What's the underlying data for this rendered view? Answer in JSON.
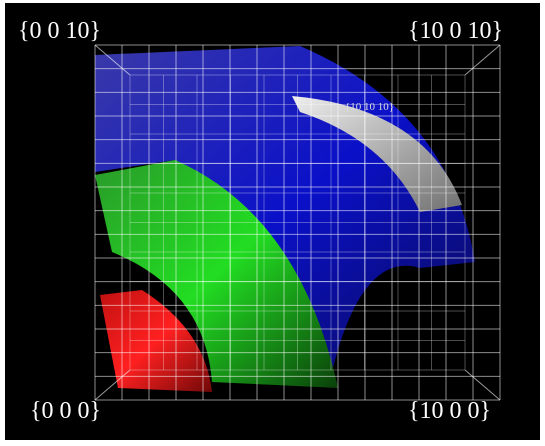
{
  "labels": {
    "top_left": "{0 0 10}",
    "top_right": "{10 0 10}",
    "inner": "{10 10 10}",
    "bottom_left": "{0 0 0}",
    "bottom_right": "{10 0 0}"
  }
}
